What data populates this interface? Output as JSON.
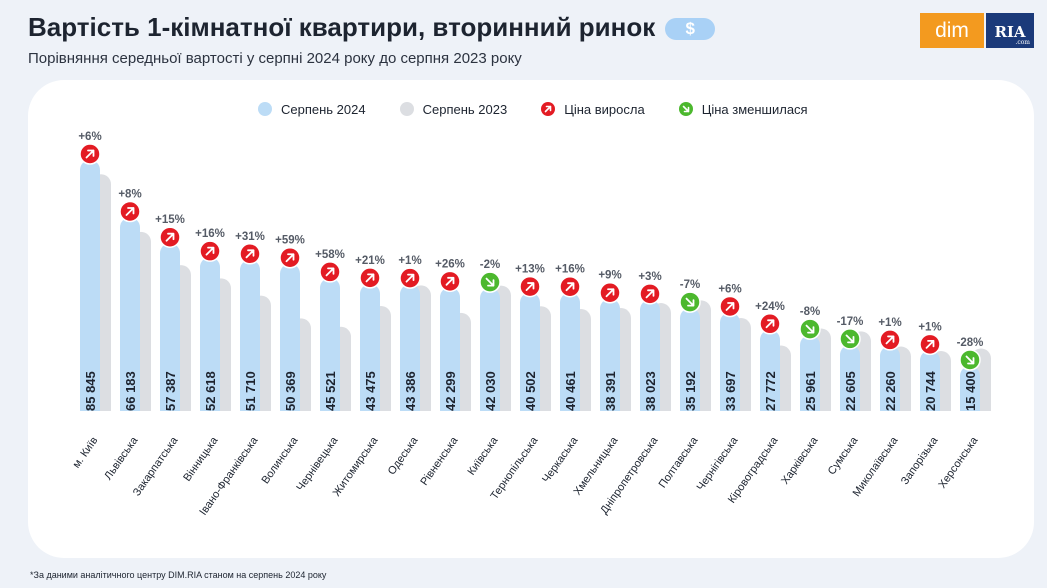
{
  "header": {
    "title": "Вартість 1-кімнатної квартири, вторинний ринок",
    "badge": "$",
    "subtitle": "Порівняння середньої вартості у серпні 2024 року до серпня 2023 року"
  },
  "logo": {
    "left": "dim",
    "right": "RIA",
    "right_small": ".com"
  },
  "legend": {
    "current": "Серпень 2024",
    "previous": "Серпень 2023",
    "up": "Ціна виросла",
    "down": "Ціна зменшилася"
  },
  "footnote": "*За даними аналітичного центру DIM.RIA станом на серпень 2024 року",
  "colors": {
    "current": "#bcdcf6",
    "previous": "#dcdee2",
    "up": "#e31b23",
    "down": "#4cb82e",
    "card": "#ffffff",
    "background": "#eef2f8"
  },
  "chart_data": {
    "type": "bar",
    "ylim": [
      0,
      90000
    ],
    "grid": false,
    "legend_position": "top",
    "categories": [
      "м. Київ",
      "Львівська",
      "Закарпатська",
      "Вінницька",
      "Івано-Франківська",
      "Волинська",
      "Чернівецька",
      "Житомирська",
      "Одеська",
      "Рівненська",
      "Київська",
      "Тернопільська",
      "Черкаська",
      "Хмельницька",
      "Дніпропетровська",
      "Полтавська",
      "Чернігівська",
      "Кіровоградська",
      "Харківська",
      "Сумська",
      "Миколаївська",
      "Запорізька",
      "Херсонська"
    ],
    "series": [
      {
        "name": "Серпень 2024",
        "values": [
          85845,
          66183,
          57387,
          52618,
          51710,
          50369,
          45521,
          43475,
          43386,
          42299,
          42030,
          40502,
          40461,
          38391,
          38023,
          35192,
          33697,
          27772,
          25961,
          22605,
          22260,
          20744,
          15400
        ]
      },
      {
        "name": "Серпень 2023",
        "values": [
          80986,
          61281,
          49902,
          45360,
          39473,
          31678,
          28811,
          35930,
          42957,
          33571,
          42888,
          35842,
          34880,
          35221,
          36916,
          37841,
          31790,
          22397,
          28218,
          27235,
          22040,
          20539,
          21389
        ]
      }
    ],
    "value_labels": [
      "85 845",
      "66 183",
      "57 387",
      "52 618",
      "51 710",
      "50 369",
      "45 521",
      "43 475",
      "43 386",
      "42 299",
      "42 030",
      "40 502",
      "40 461",
      "38 391",
      "38 023",
      "35 192",
      "33 697",
      "27 772",
      "25 961",
      "22 605",
      "22 260",
      "20 744",
      "15 400"
    ],
    "changes": [
      "+6%",
      "+8%",
      "+15%",
      "+16%",
      "+31%",
      "+59%",
      "+58%",
      "+21%",
      "+1%",
      "+26%",
      "-2%",
      "+13%",
      "+16%",
      "+9%",
      "+3%",
      "-7%",
      "+6%",
      "+24%",
      "-8%",
      "-17%",
      "+1%",
      "+1%",
      "-28%"
    ],
    "directions": [
      "up",
      "up",
      "up",
      "up",
      "up",
      "up",
      "up",
      "up",
      "up",
      "up",
      "down",
      "up",
      "up",
      "up",
      "up",
      "down",
      "up",
      "up",
      "down",
      "down",
      "up",
      "up",
      "down"
    ]
  }
}
